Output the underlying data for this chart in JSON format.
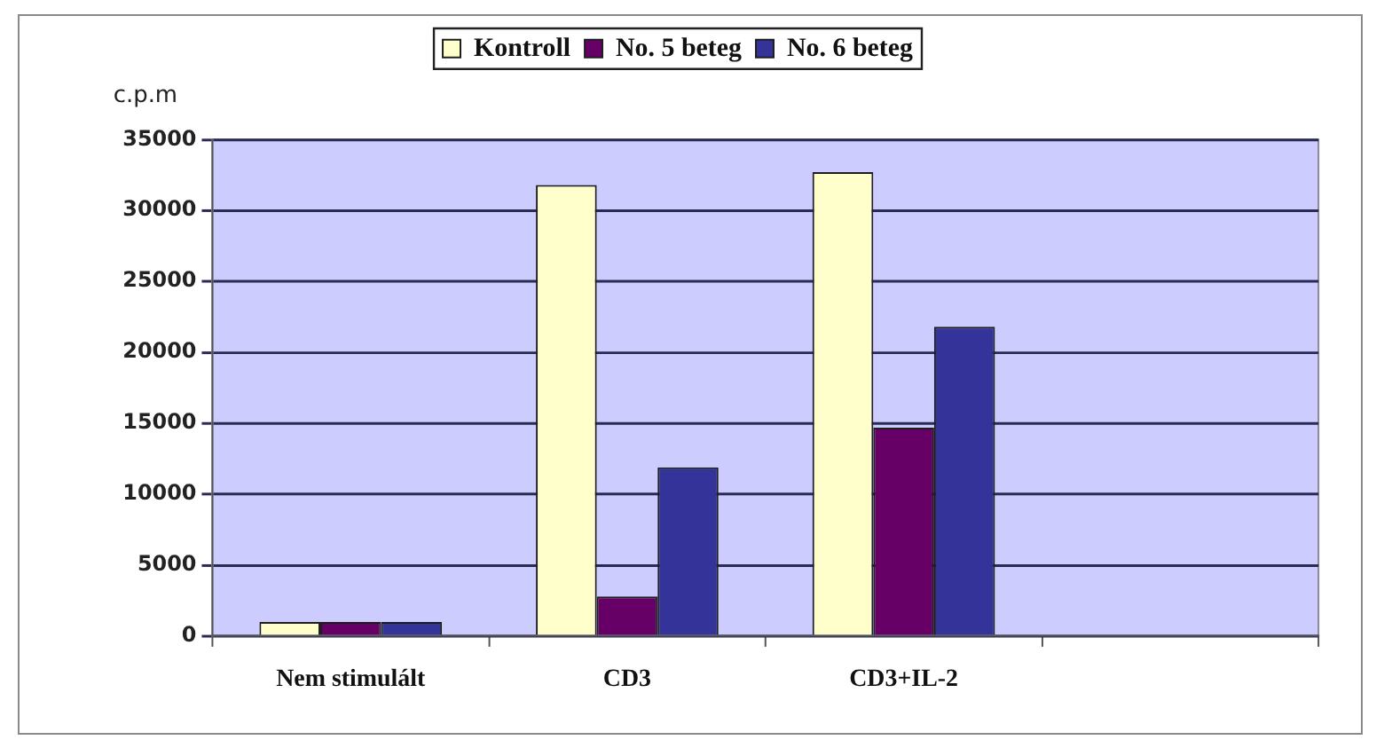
{
  "chart_data": {
    "type": "bar",
    "ylabel": "c.p.m",
    "categories": [
      "Nem stimulált",
      "CD3",
      "CD3+IL-2",
      null
    ],
    "series": [
      {
        "name": "Kontroll",
        "color": "#ffffcc",
        "values": [
          1000,
          31800,
          32700,
          null
        ]
      },
      {
        "name": "No. 5 beteg",
        "color": "#660066",
        "values": [
          1000,
          2800,
          14700,
          null
        ]
      },
      {
        "name": "No. 6 beteg",
        "color": "#333399",
        "values": [
          1000,
          11900,
          21800,
          null
        ]
      }
    ],
    "ylim": [
      0,
      35000
    ],
    "yticks": [
      0,
      5000,
      10000,
      15000,
      20000,
      25000,
      30000,
      35000
    ],
    "grid": "y",
    "legend": "top"
  }
}
